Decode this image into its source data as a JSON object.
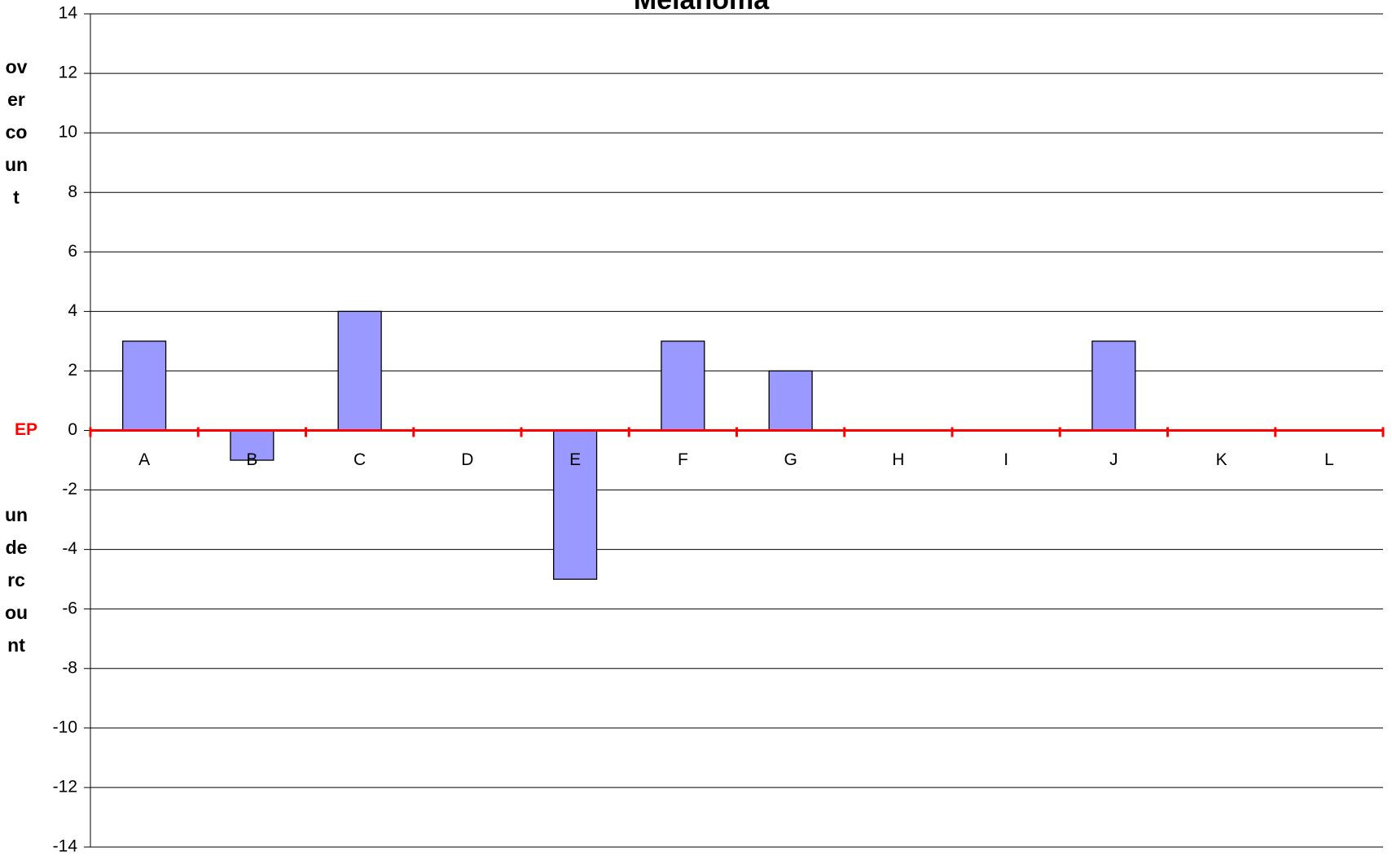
{
  "chart_data": {
    "type": "bar",
    "title": "Melanoma",
    "y_label_top": "overcount",
    "y_label_bottom": "undercount",
    "x_label": "EP",
    "categories": [
      "A",
      "B",
      "C",
      "D",
      "E",
      "F",
      "G",
      "H",
      "I",
      "J",
      "K",
      "L"
    ],
    "values": [
      3,
      -1,
      4,
      0,
      -5,
      3,
      2,
      0,
      0,
      3,
      0,
      0
    ],
    "color": "#9999ff",
    "axis_color": "#ff0000",
    "ylim": [
      -14,
      14
    ],
    "yticks": [
      -14,
      -12,
      -10,
      -8,
      -6,
      -4,
      -2,
      0,
      2,
      4,
      6,
      8,
      10,
      12,
      14
    ],
    "grid": true
  }
}
